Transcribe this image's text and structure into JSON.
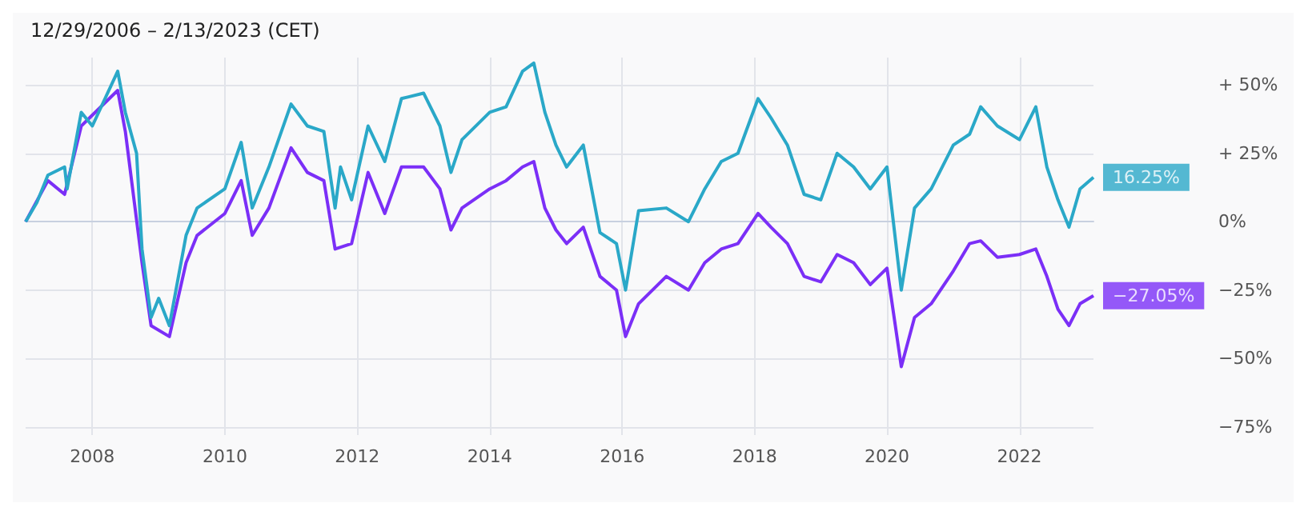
{
  "chart_data": {
    "type": "line",
    "subtitle": "12/29/2006 – 2/13/2023 (CET)",
    "xlim": [
      "2006-12-29",
      "2023-02-13"
    ],
    "xticks": [
      "2008",
      "2010",
      "2012",
      "2014",
      "2016",
      "2018",
      "2020",
      "2022"
    ],
    "ylim": [
      -78,
      60
    ],
    "yticks": [
      {
        "value": 50,
        "label": "+ 50%"
      },
      {
        "value": 25,
        "label": "+ 25%"
      },
      {
        "value": 0,
        "label": "0%"
      },
      {
        "value": -25,
        "label": "−25%"
      },
      {
        "value": -50,
        "label": "−50%"
      },
      {
        "value": -75,
        "label": "−75%"
      }
    ],
    "grid": true,
    "marker": "none",
    "line_style": "solid",
    "series": [
      {
        "color": "#7b2ff7",
        "x": [
          "2006-12-29",
          "2007-05",
          "2007-08",
          "2007-11",
          "2008-05-20",
          "2008-07",
          "2008-10",
          "2008-11-20",
          "2009-03",
          "2009-06",
          "2009-08",
          "2010-01",
          "2010-04",
          "2010-06",
          "2010-09",
          "2011-01",
          "2011-04",
          "2011-07",
          "2011-09",
          "2011-12",
          "2012-03",
          "2012-06",
          "2012-09",
          "2013-01",
          "2013-04",
          "2013-06",
          "2013-08",
          "2014-01",
          "2014-04",
          "2014-07",
          "2014-09",
          "2014-11",
          "2015-01",
          "2015-03",
          "2015-06",
          "2015-09",
          "2015-12",
          "2016-01-20",
          "2016-04",
          "2016-09",
          "2017-01",
          "2017-04",
          "2017-07",
          "2017-10",
          "2018-01-20",
          "2018-04",
          "2018-07",
          "2018-10",
          "2019-01",
          "2019-04",
          "2019-07",
          "2019-10",
          "2020-01",
          "2020-03-20",
          "2020-06",
          "2020-09",
          "2021-01",
          "2021-04",
          "2021-06",
          "2021-09",
          "2022-01",
          "2022-04",
          "2022-06",
          "2022-08",
          "2022-10",
          "2022-12",
          "2023-02-13"
        ],
        "values": [
          0,
          15,
          10,
          35,
          48,
          33,
          -15,
          -38,
          -42,
          -15,
          -5,
          3,
          15,
          -5,
          5,
          27,
          18,
          15,
          -10,
          -8,
          18,
          3,
          20,
          20,
          12,
          -3,
          5,
          12,
          15,
          20,
          22,
          5,
          -3,
          -8,
          -2,
          -20,
          -25,
          -42,
          -30,
          -20,
          -25,
          -15,
          -10,
          -8,
          3,
          -2,
          -8,
          -20,
          -22,
          -12,
          -15,
          -23,
          -17,
          -53,
          -35,
          -30,
          -18,
          -8,
          -7,
          -13,
          -12,
          -10,
          -20,
          -32,
          -38,
          -30,
          -27.05
        ]
      },
      {
        "color": "#2aa8c8",
        "x": [
          "2006-12-29",
          "2007-03",
          "2007-05",
          "2007-08",
          "2007-08-15",
          "2007-11",
          "2008-01",
          "2008-05-20",
          "2008-07",
          "2008-09",
          "2008-10",
          "2008-11-20",
          "2009-01",
          "2009-03",
          "2009-06",
          "2009-08",
          "2010-01",
          "2010-04",
          "2010-06",
          "2010-09",
          "2011-01",
          "2011-04",
          "2011-07",
          "2011-09",
          "2011-10",
          "2011-12",
          "2012-03",
          "2012-06",
          "2012-09",
          "2013-01",
          "2013-04",
          "2013-06",
          "2013-08",
          "2014-01",
          "2014-04",
          "2014-07",
          "2014-09",
          "2014-11",
          "2015-01",
          "2015-03",
          "2015-06",
          "2015-09",
          "2015-12",
          "2016-01-20",
          "2016-04",
          "2016-09",
          "2017-01",
          "2017-04",
          "2017-07",
          "2017-10",
          "2018-01-20",
          "2018-04",
          "2018-07",
          "2018-10",
          "2019-01",
          "2019-04",
          "2019-07",
          "2019-10",
          "2020-01",
          "2020-03-20",
          "2020-06",
          "2020-09",
          "2021-01",
          "2021-04",
          "2021-06",
          "2021-09",
          "2022-01",
          "2022-04",
          "2022-06",
          "2022-08",
          "2022-10",
          "2022-12",
          "2023-02-13"
        ],
        "values": [
          0,
          7,
          17,
          20,
          12,
          40,
          35,
          55,
          40,
          25,
          -10,
          -35,
          -28,
          -38,
          -5,
          5,
          12,
          29,
          5,
          20,
          43,
          35,
          33,
          5,
          20,
          8,
          35,
          22,
          45,
          47,
          35,
          18,
          30,
          40,
          42,
          55,
          58,
          40,
          28,
          20,
          28,
          -4,
          -8,
          -25,
          4,
          5,
          0,
          12,
          22,
          25,
          45,
          38,
          28,
          10,
          8,
          25,
          20,
          12,
          20,
          -25,
          5,
          12,
          28,
          32,
          42,
          35,
          30,
          42,
          20,
          8,
          -2,
          12,
          16.25
        ]
      }
    ],
    "annotations": [
      {
        "text": "−27.05%",
        "x": "2023-02-13",
        "y": -27.05
      },
      {
        "text": "16.25%",
        "x": "2023-02-13",
        "y": 16.25
      }
    ]
  }
}
